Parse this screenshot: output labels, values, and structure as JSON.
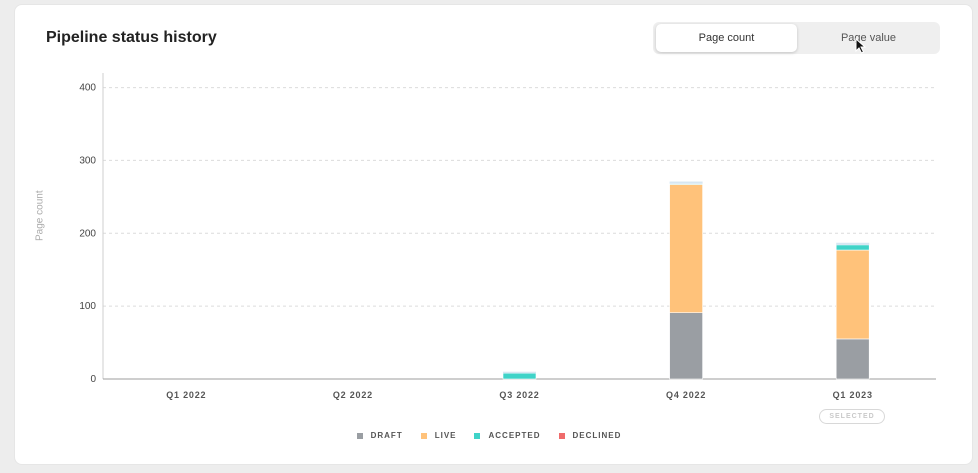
{
  "header": {
    "title": "Pipeline status history"
  },
  "toggle": {
    "options": [
      "Page count",
      "Page value"
    ],
    "active": "Page count"
  },
  "selected_badge": "SELECTED",
  "legend": [
    {
      "label": "DRAFT",
      "color": "#9a9ea3"
    },
    {
      "label": "LIVE",
      "color": "#ffc27a"
    },
    {
      "label": "ACCEPTED",
      "color": "#3fd3c8"
    },
    {
      "label": "DECLINED",
      "color": "#ef6b6b"
    }
  ],
  "chart_data": {
    "type": "bar",
    "stacked": true,
    "categories": [
      "Q1 2022",
      "Q2 2022",
      "Q3 2022",
      "Q4 2022",
      "Q1 2023"
    ],
    "ylabel": "Page count",
    "ylim": [
      0,
      420
    ],
    "yticks": [
      0,
      100,
      200,
      300,
      400
    ],
    "grid": true,
    "legend_position": "bottom",
    "selected_category": "Q1 2023",
    "series": [
      {
        "name": "DRAFT",
        "color": "#9a9ea3",
        "values": [
          0,
          0,
          0,
          91,
          55
        ]
      },
      {
        "name": "LIVE",
        "color": "#ffc27a",
        "values": [
          0,
          0,
          0,
          176,
          122
        ]
      },
      {
        "name": "ACCEPTED",
        "color": "#3fd3c8",
        "values": [
          0,
          0,
          8,
          1,
          7
        ]
      },
      {
        "name": "DECLINED",
        "color": "#ef6b6b",
        "values": [
          0,
          0,
          0,
          0,
          0
        ]
      }
    ],
    "extra_top": {
      "color": "#d6e7f2",
      "values": [
        0,
        0,
        2,
        3,
        3
      ]
    }
  }
}
